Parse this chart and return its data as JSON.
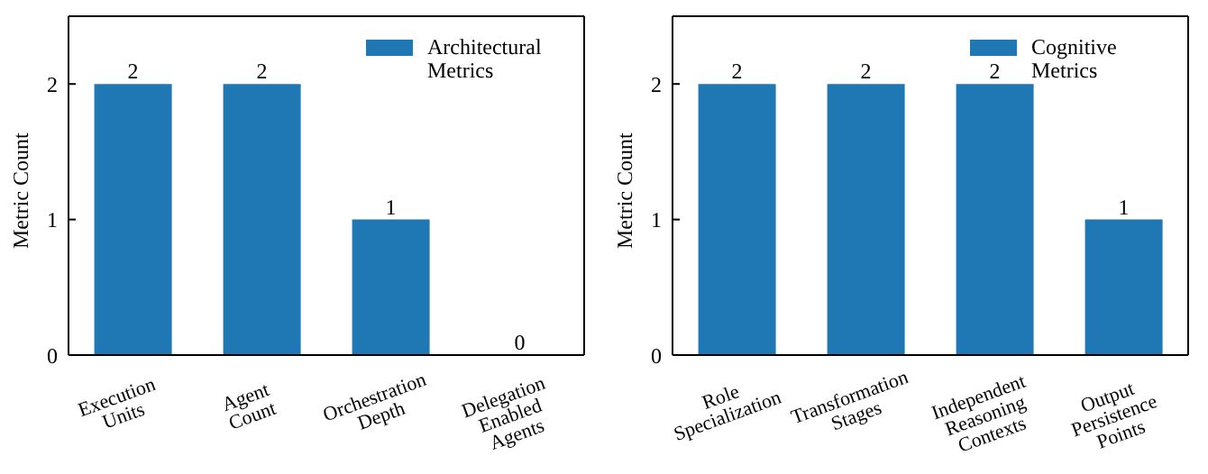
{
  "chart_data": [
    {
      "type": "bar",
      "categories": [
        "Execution Units",
        "Agent Count",
        "Orchestration Depth",
        "Delegation Enabled Agents"
      ],
      "series": [
        {
          "name": "Architectural Metrics",
          "color": "#1f77b4",
          "values": [
            2,
            2,
            1,
            0
          ]
        }
      ],
      "ylabel": "Metric Count",
      "ylim": [
        0,
        2.5
      ],
      "yticks": [
        0,
        1,
        2
      ],
      "data_labels": true,
      "legend": "top right",
      "grid": false
    },
    {
      "type": "bar",
      "categories": [
        "Role Specialization",
        "Transformation Stages",
        "Independent Reasoning Contexts",
        "Output Persistence Points"
      ],
      "series": [
        {
          "name": "Cognitive Metrics",
          "color": "#1f77b4",
          "values": [
            2,
            2,
            2,
            1
          ]
        }
      ],
      "ylabel": "Metric Count",
      "ylim": [
        0,
        2.5
      ],
      "yticks": [
        0,
        1,
        2
      ],
      "data_labels": true,
      "legend": "top right",
      "grid": false
    }
  ]
}
